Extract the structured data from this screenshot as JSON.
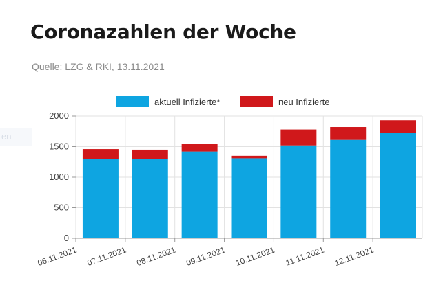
{
  "header": {
    "title": "Coronazahlen der Woche",
    "source": "Quelle: LZG & RKI, 13.11.2021"
  },
  "ghost_text": "en",
  "chart_data": {
    "type": "bar",
    "stacked": true,
    "categories": [
      "06.11.2021",
      "07.11.2021",
      "08.11.2021",
      "09.11.2021",
      "10.11.2021",
      "11.11.2021",
      "12.11.2021"
    ],
    "series": [
      {
        "name": "aktuell Infizierte*",
        "color": "#0ea5e1",
        "values": [
          1300,
          1300,
          1420,
          1310,
          1520,
          1610,
          1720
        ]
      },
      {
        "name": "neu Infizierte",
        "color": "#d0181b",
        "values": [
          160,
          150,
          120,
          40,
          260,
          210,
          210
        ]
      }
    ],
    "ylim": [
      0,
      2000
    ],
    "yticks": [
      0,
      500,
      1000,
      1500,
      2000
    ],
    "grid": true,
    "legend": "top"
  }
}
